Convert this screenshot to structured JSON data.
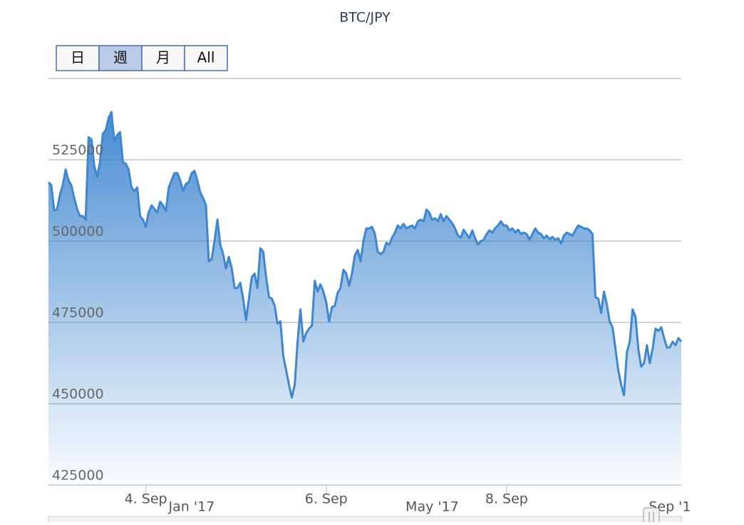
{
  "chart_data": {
    "type": "area",
    "title": "BTC/JPY",
    "range_buttons": [
      "日",
      "週",
      "月",
      "All"
    ],
    "selected_button": 1,
    "grid": true,
    "ylim": [
      425000,
      550000
    ],
    "yticks": [
      425000,
      450000,
      475000,
      500000,
      525000
    ],
    "xlim": [
      0,
      221
    ],
    "xticks": [
      {
        "value": 34,
        "label": "4. Sep"
      },
      {
        "value": 97,
        "label": "6. Sep"
      },
      {
        "value": 160,
        "label": "8. Sep"
      }
    ],
    "navigator_ticks": [
      {
        "value": 50,
        "label": "Jan '17"
      },
      {
        "value": 134,
        "label": "May '17"
      },
      {
        "value": 217,
        "label": "Sep '1"
      }
    ],
    "series": [
      {
        "name": "BTC/JPY",
        "color": "#3f86cf",
        "values": [
          518100,
          517200,
          509500,
          509700,
          514300,
          517200,
          522000,
          518700,
          517200,
          513200,
          509900,
          507700,
          507700,
          506600,
          531900,
          531300,
          523100,
          519800,
          524200,
          533000,
          534100,
          537900,
          539700,
          530800,
          532600,
          533500,
          524200,
          523800,
          522000,
          516500,
          515400,
          516500,
          507700,
          506600,
          504400,
          508800,
          511000,
          509900,
          508800,
          512100,
          511000,
          509200,
          516500,
          518700,
          520900,
          520900,
          518700,
          515400,
          517600,
          518100,
          520900,
          521600,
          518700,
          515000,
          513200,
          511000,
          493800,
          494500,
          500000,
          506600,
          498900,
          496000,
          491600,
          495100,
          491600,
          485600,
          485600,
          487200,
          482300,
          475700,
          482300,
          488900,
          490000,
          485600,
          497800,
          496700,
          488900,
          482800,
          482300,
          480100,
          474600,
          475300,
          464700,
          460300,
          455900,
          451900,
          455900,
          469100,
          479000,
          469100,
          471700,
          473100,
          474000,
          487800,
          484500,
          486700,
          484500,
          481200,
          475300,
          479700,
          480100,
          484100,
          485600,
          491200,
          490000,
          486300,
          490000,
          495600,
          497300,
          493800,
          500000,
          503900,
          503900,
          504400,
          502200,
          496700,
          496000,
          496700,
          499500,
          498900,
          501100,
          502600,
          504800,
          503900,
          505300,
          503900,
          504400,
          504800,
          503900,
          506100,
          506600,
          506100,
          509700,
          508800,
          506600,
          507000,
          506100,
          508300,
          506100,
          507700,
          506600,
          505500,
          503900,
          501700,
          501100,
          503500,
          502200,
          500900,
          503300,
          500900,
          498900,
          500000,
          500400,
          502200,
          503300,
          502600,
          503900,
          504800,
          506100,
          504800,
          504800,
          503300,
          503900,
          502600,
          503500,
          502200,
          502600,
          502200,
          500400,
          502200,
          503900,
          502600,
          502200,
          500900,
          501700,
          500600,
          501300,
          500400,
          500900,
          499300,
          501700,
          502600,
          502200,
          501700,
          503300,
          504800,
          504400,
          503900,
          503900,
          503300,
          502200,
          482800,
          482300,
          477900,
          484500,
          480600,
          475300,
          473500,
          466900,
          460300,
          455900,
          452600,
          465800,
          469100,
          479000,
          476800,
          466900,
          461400,
          462500,
          468000,
          462500,
          466900,
          473100,
          472400,
          473500,
          470200,
          467300,
          467300,
          469100,
          468000,
          470200,
          469100
        ]
      }
    ]
  }
}
